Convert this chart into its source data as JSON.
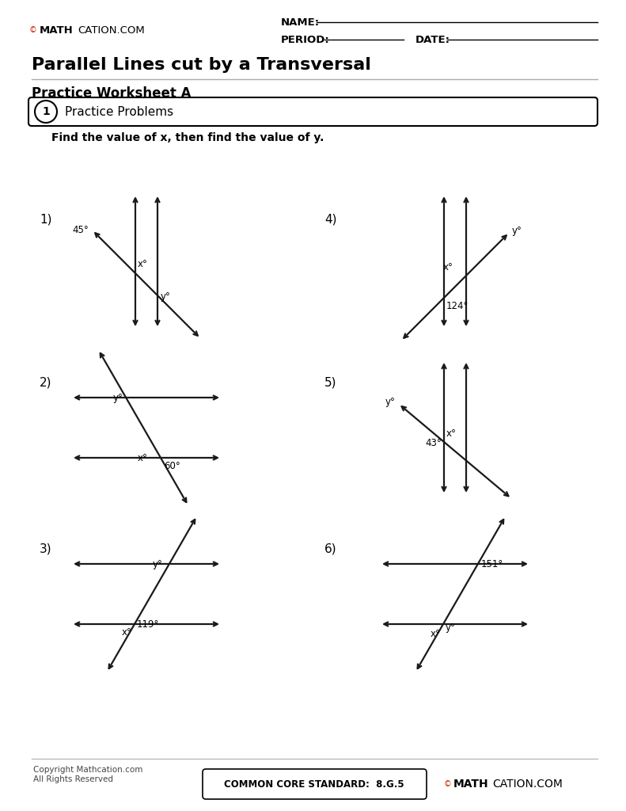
{
  "title": "Parallel Lines cut by a Transversal",
  "subtitle": "Practice Worksheet A",
  "section_title": "Practice Problems",
  "instruction": "Find the value of x, then find the value of y.",
  "footer_copyright": "Copyright Mathcation.com\nAll Rights Reserved",
  "footer_standard": "COMMON CORE STANDARD:  8.G.5",
  "bg_color": "#ffffff",
  "text_color": "#1a1a1a",
  "line_color": "#1a1a1a",
  "problems": {
    "p1": {
      "label": "1)",
      "angle": "45°",
      "x_lbl": "x°",
      "y_lbl": "y°"
    },
    "p2": {
      "label": "2)",
      "angle": "60°",
      "x_lbl": "x°",
      "y_lbl": "y°"
    },
    "p3": {
      "label": "3)",
      "angle": "119°",
      "x_lbl": "x°",
      "y_lbl": "y°"
    },
    "p4": {
      "label": "4)",
      "angle": "124°",
      "x_lbl": "x°",
      "y_lbl": "y°"
    },
    "p5": {
      "label": "5)",
      "angle": "43°",
      "x_lbl": "x°",
      "y_lbl": "y°"
    },
    "p6": {
      "label": "6)",
      "angle": "151°",
      "x_lbl": "x°",
      "y_lbl": "y°"
    }
  }
}
